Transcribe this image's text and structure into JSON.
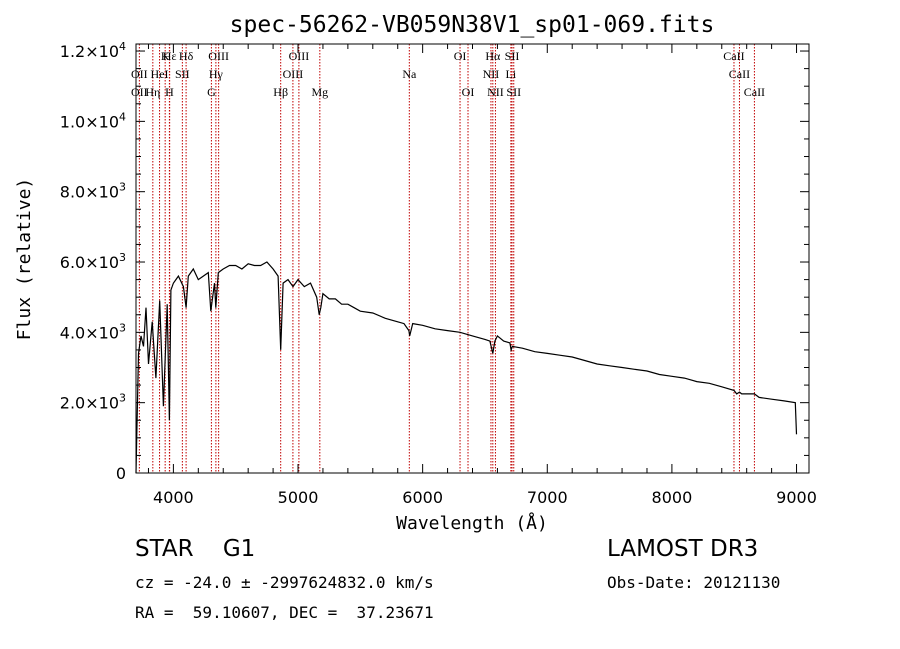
{
  "chart_data": {
    "type": "line",
    "title": "spec-56262-VB059N38V1_sp01-069.fits",
    "xlabel": "Wavelength (Å)",
    "ylabel": "Flux (relative)",
    "xlim": [
      3700,
      9100
    ],
    "ylim": [
      0,
      12200
    ],
    "x_ticks": [
      {
        "value": 4000,
        "label": "4000"
      },
      {
        "value": 5000,
        "label": "5000"
      },
      {
        "value": 6000,
        "label": "6000"
      },
      {
        "value": 7000,
        "label": "7000"
      },
      {
        "value": 8000,
        "label": "8000"
      },
      {
        "value": 9000,
        "label": "9000"
      }
    ],
    "y_ticks": [
      {
        "value": 0,
        "label": "0",
        "exp": ""
      },
      {
        "value": 2000,
        "label": "2.0×10",
        "exp": "3"
      },
      {
        "value": 4000,
        "label": "4.0×10",
        "exp": "3"
      },
      {
        "value": 6000,
        "label": "6.0×10",
        "exp": "3"
      },
      {
        "value": 8000,
        "label": "8.0×10",
        "exp": "3"
      },
      {
        "value": 10000,
        "label": "1.0×10",
        "exp": "4"
      },
      {
        "value": 12000,
        "label": "1.2×10",
        "exp": "4"
      }
    ],
    "series": [
      {
        "name": "spectrum",
        "x": [
          3700,
          3720,
          3740,
          3760,
          3780,
          3800,
          3830,
          3860,
          3890,
          3920,
          3950,
          3968,
          3980,
          4000,
          4040,
          4080,
          4102,
          4120,
          4160,
          4200,
          4240,
          4280,
          4300,
          4330,
          4340,
          4360,
          4400,
          4450,
          4500,
          4550,
          4600,
          4650,
          4700,
          4750,
          4800,
          4840,
          4861,
          4880,
          4920,
          4960,
          5000,
          5050,
          5100,
          5150,
          5170,
          5183,
          5200,
          5250,
          5300,
          5350,
          5400,
          5450,
          5500,
          5600,
          5700,
          5800,
          5850,
          5890,
          5896,
          5920,
          6000,
          6100,
          6200,
          6300,
          6400,
          6500,
          6540,
          6563,
          6580,
          6600,
          6650,
          6700,
          6710,
          6720,
          6800,
          6900,
          7000,
          7100,
          7200,
          7300,
          7400,
          7500,
          7600,
          7700,
          7800,
          7900,
          8000,
          8100,
          8200,
          8300,
          8400,
          8498,
          8520,
          8542,
          8560,
          8600,
          8662,
          8700,
          8800,
          8900,
          8990,
          9000
        ],
        "values": [
          0,
          3400,
          3900,
          3600,
          4700,
          3100,
          4300,
          2700,
          4900,
          1900,
          4800,
          1500,
          5200,
          5400,
          5600,
          5300,
          4700,
          5600,
          5800,
          5500,
          5600,
          5700,
          4600,
          5400,
          4700,
          5700,
          5800,
          5900,
          5900,
          5800,
          5950,
          5900,
          5900,
          6000,
          5800,
          5600,
          3500,
          5400,
          5500,
          5300,
          5500,
          5300,
          5400,
          5000,
          4500,
          4700,
          5100,
          4950,
          4950,
          4800,
          4800,
          4700,
          4600,
          4550,
          4400,
          4300,
          4250,
          4050,
          3900,
          4250,
          4200,
          4100,
          4050,
          4000,
          3900,
          3800,
          3750,
          3400,
          3750,
          3900,
          3750,
          3700,
          3500,
          3600,
          3550,
          3450,
          3400,
          3350,
          3300,
          3200,
          3100,
          3050,
          3000,
          2950,
          2900,
          2800,
          2750,
          2700,
          2600,
          2550,
          2450,
          2350,
          2250,
          2300,
          2250,
          2250,
          2250,
          2150,
          2100,
          2050,
          2000,
          1100
        ]
      }
    ],
    "line_labels": [
      {
        "name": "Hε",
        "x": 3970,
        "row": 0
      },
      {
        "name": "K",
        "x": 3934,
        "row": 0
      },
      {
        "name": "Hδ",
        "x": 4102,
        "row": 0
      },
      {
        "name": "OIII",
        "x": 4363,
        "row": 0
      },
      {
        "name": "OIII",
        "x": 5007,
        "row": 0
      },
      {
        "name": "OI",
        "x": 6300,
        "row": 0
      },
      {
        "name": "Hα",
        "x": 6563,
        "row": 0
      },
      {
        "name": "SII",
        "x": 6717,
        "row": 0
      },
      {
        "name": "CaII",
        "x": 8498,
        "row": 0
      },
      {
        "name": "OII",
        "x": 3727,
        "row": 1
      },
      {
        "name": "HeI",
        "x": 3889,
        "row": 1
      },
      {
        "name": "SII",
        "x": 4072,
        "row": 1
      },
      {
        "name": "Hγ",
        "x": 4341,
        "row": 1
      },
      {
        "name": "OIII",
        "x": 4959,
        "row": 1
      },
      {
        "name": "Na",
        "x": 5893,
        "row": 1
      },
      {
        "name": "NII",
        "x": 6548,
        "row": 1
      },
      {
        "name": "Li",
        "x": 6708,
        "row": 1
      },
      {
        "name": "CaII",
        "x": 8542,
        "row": 1
      },
      {
        "name": "OII",
        "x": 3727,
        "row": 2
      },
      {
        "name": "Hη",
        "x": 3835,
        "row": 2
      },
      {
        "name": "H",
        "x": 3968,
        "row": 2
      },
      {
        "name": "G",
        "x": 4305,
        "row": 2
      },
      {
        "name": "Hβ",
        "x": 4861,
        "row": 2
      },
      {
        "name": "Mg",
        "x": 5175,
        "row": 2
      },
      {
        "name": "OI",
        "x": 6364,
        "row": 2
      },
      {
        "name": "NII",
        "x": 6584,
        "row": 2
      },
      {
        "name": "SII",
        "x": 6731,
        "row": 2
      },
      {
        "name": "CaII",
        "x": 8662,
        "row": 2
      }
    ],
    "marker_lines": [
      3727,
      3835,
      3889,
      3934,
      3968,
      3970,
      4072,
      4102,
      4305,
      4341,
      4363,
      4861,
      4959,
      5007,
      5175,
      5893,
      6300,
      6364,
      6548,
      6563,
      6584,
      6708,
      6717,
      6731,
      8498,
      8542,
      8662
    ],
    "colors": {
      "line": "#000000",
      "marker": "#c00000",
      "axis": "#000000"
    }
  },
  "info": {
    "object_class": "STAR",
    "subclass": "G1",
    "survey": "LAMOST DR3",
    "cz_text": "cz = -24.0 ± -2997624832.0 km/s",
    "obs_date": "Obs-Date: 20121130",
    "coords": "RA =  59.10607, DEC =  37.23671"
  }
}
